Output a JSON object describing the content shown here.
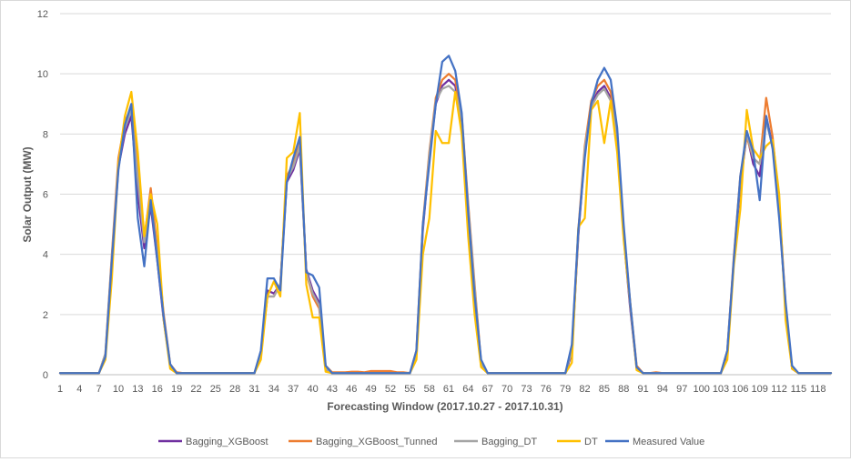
{
  "chart_data": {
    "type": "line",
    "title": "",
    "xlabel": "Forecasting Window (2017.10.27  - 2017.10.31)",
    "ylabel": "Solar Output (MW)",
    "ylim": [
      0,
      12
    ],
    "yticks": [
      0,
      2,
      4,
      6,
      8,
      10,
      12
    ],
    "xlim": [
      1,
      120
    ],
    "xtick_labels": [
      "1",
      "4",
      "7",
      "10",
      "13",
      "16",
      "19",
      "22",
      "25",
      "28",
      "31",
      "34",
      "37",
      "40",
      "43",
      "46",
      "49",
      "52",
      "55",
      "58",
      "61",
      "64",
      "67",
      "70",
      "73",
      "76",
      "79",
      "82",
      "85",
      "88",
      "91",
      "94",
      "97",
      "100",
      "103",
      "106",
      "109",
      "112",
      "115",
      "118"
    ],
    "grid": "horizontal",
    "legend_position": "bottom",
    "x": [
      1,
      2,
      3,
      4,
      5,
      6,
      7,
      8,
      9,
      10,
      11,
      12,
      13,
      14,
      15,
      16,
      17,
      18,
      19,
      20,
      21,
      22,
      23,
      24,
      25,
      26,
      27,
      28,
      29,
      30,
      31,
      32,
      33,
      34,
      35,
      36,
      37,
      38,
      39,
      40,
      41,
      42,
      43,
      44,
      45,
      46,
      47,
      48,
      49,
      50,
      51,
      52,
      53,
      54,
      55,
      56,
      57,
      58,
      59,
      60,
      61,
      62,
      63,
      64,
      65,
      66,
      67,
      68,
      69,
      70,
      71,
      72,
      73,
      74,
      75,
      76,
      77,
      78,
      79,
      80,
      81,
      82,
      83,
      84,
      85,
      86,
      87,
      88,
      89,
      90,
      91,
      92,
      93,
      94,
      95,
      96,
      97,
      98,
      99,
      100,
      101,
      102,
      103,
      104,
      105,
      106,
      107,
      108,
      109,
      110,
      111,
      112,
      113,
      114,
      115,
      116,
      117,
      118,
      119,
      120
    ],
    "series": [
      {
        "name": "Bagging_XGBoost",
        "color": "#7030a0",
        "values": [
          0.05,
          0.05,
          0.05,
          0.05,
          0.05,
          0.05,
          0.05,
          0.6,
          3.8,
          6.9,
          8.0,
          8.6,
          6.0,
          4.2,
          5.6,
          3.8,
          1.8,
          0.3,
          0.05,
          0.05,
          0.05,
          0.05,
          0.05,
          0.05,
          0.05,
          0.05,
          0.05,
          0.05,
          0.05,
          0.05,
          0.05,
          0.6,
          2.8,
          2.7,
          3.0,
          6.4,
          6.8,
          7.5,
          3.5,
          2.8,
          2.4,
          0.15,
          0.05,
          0.05,
          0.05,
          0.05,
          0.05,
          0.05,
          0.05,
          0.05,
          0.05,
          0.05,
          0.05,
          0.05,
          0.05,
          0.7,
          4.8,
          7.2,
          9.0,
          9.6,
          9.8,
          9.6,
          8.4,
          5.5,
          2.8,
          0.3,
          0.05,
          0.05,
          0.05,
          0.05,
          0.05,
          0.05,
          0.05,
          0.05,
          0.05,
          0.05,
          0.05,
          0.05,
          0.05,
          0.7,
          4.6,
          7.4,
          9.0,
          9.4,
          9.6,
          9.2,
          7.8,
          4.6,
          2.2,
          0.2,
          0.05,
          0.05,
          0.05,
          0.05,
          0.05,
          0.05,
          0.05,
          0.05,
          0.05,
          0.05,
          0.05,
          0.05,
          0.05,
          0.7,
          3.7,
          6.3,
          8.0,
          7.0,
          6.6,
          8.6,
          7.6,
          5.5,
          2.2,
          0.2,
          0.05,
          0.05,
          0.05,
          0.05,
          0.05,
          0.05
        ]
      },
      {
        "name": "Bagging_XGBoost_Tunned",
        "color": "#ed7d31",
        "values": [
          0.05,
          0.05,
          0.05,
          0.05,
          0.05,
          0.05,
          0.05,
          0.7,
          4.0,
          7.2,
          8.4,
          8.9,
          7.0,
          4.5,
          6.2,
          4.2,
          2.0,
          0.35,
          0.08,
          0.05,
          0.05,
          0.05,
          0.05,
          0.05,
          0.05,
          0.05,
          0.05,
          0.05,
          0.05,
          0.05,
          0.05,
          0.7,
          2.6,
          2.6,
          3.0,
          6.6,
          7.0,
          7.9,
          3.4,
          2.6,
          2.2,
          0.3,
          0.08,
          0.08,
          0.08,
          0.1,
          0.1,
          0.08,
          0.12,
          0.12,
          0.12,
          0.12,
          0.08,
          0.08,
          0.05,
          0.8,
          5.0,
          7.4,
          9.2,
          9.8,
          10.0,
          9.8,
          8.6,
          5.7,
          3.0,
          0.4,
          0.05,
          0.05,
          0.05,
          0.05,
          0.05,
          0.05,
          0.05,
          0.05,
          0.05,
          0.05,
          0.05,
          0.05,
          0.05,
          0.8,
          4.8,
          7.6,
          9.1,
          9.6,
          9.8,
          9.4,
          8.0,
          4.8,
          2.4,
          0.3,
          0.05,
          0.05,
          0.08,
          0.05,
          0.05,
          0.05,
          0.05,
          0.05,
          0.05,
          0.05,
          0.05,
          0.05,
          0.05,
          0.8,
          3.9,
          6.6,
          7.9,
          7.2,
          7.0,
          9.2,
          7.9,
          5.7,
          2.3,
          0.2,
          0.05,
          0.05,
          0.05,
          0.05,
          0.05,
          0.05
        ]
      },
      {
        "name": "Bagging_DT",
        "color": "#a5a5a5",
        "values": [
          0.05,
          0.05,
          0.05,
          0.05,
          0.05,
          0.05,
          0.05,
          0.7,
          3.9,
          7.0,
          8.2,
          8.8,
          6.5,
          4.4,
          5.8,
          4.0,
          1.9,
          0.3,
          0.05,
          0.05,
          0.05,
          0.05,
          0.05,
          0.05,
          0.05,
          0.05,
          0.05,
          0.05,
          0.05,
          0.05,
          0.05,
          0.7,
          2.6,
          2.6,
          3.0,
          6.5,
          6.9,
          7.6,
          3.4,
          2.7,
          2.3,
          0.2,
          0.05,
          0.05,
          0.05,
          0.05,
          0.05,
          0.05,
          0.05,
          0.05,
          0.05,
          0.05,
          0.05,
          0.05,
          0.05,
          0.7,
          4.9,
          7.3,
          9.1,
          9.5,
          9.6,
          9.4,
          8.5,
          5.6,
          2.9,
          0.35,
          0.05,
          0.05,
          0.05,
          0.05,
          0.05,
          0.05,
          0.05,
          0.05,
          0.05,
          0.05,
          0.05,
          0.05,
          0.05,
          0.8,
          4.7,
          7.5,
          8.9,
          9.3,
          9.5,
          9.1,
          7.9,
          4.7,
          2.3,
          0.25,
          0.05,
          0.05,
          0.05,
          0.05,
          0.05,
          0.05,
          0.05,
          0.05,
          0.05,
          0.05,
          0.05,
          0.05,
          0.05,
          0.8,
          3.8,
          6.5,
          8.0,
          7.2,
          7.0,
          8.4,
          7.6,
          5.6,
          2.2,
          0.2,
          0.05,
          0.05,
          0.05,
          0.05,
          0.05,
          0.05
        ]
      },
      {
        "name": "DT",
        "color": "#ffc000",
        "values": [
          0.05,
          0.05,
          0.05,
          0.05,
          0.05,
          0.05,
          0.05,
          0.5,
          3.2,
          7.0,
          8.6,
          9.4,
          7.4,
          4.6,
          6.0,
          5.0,
          1.8,
          0.2,
          0.05,
          0.05,
          0.05,
          0.05,
          0.05,
          0.05,
          0.05,
          0.05,
          0.05,
          0.05,
          0.05,
          0.05,
          0.05,
          0.5,
          2.6,
          3.1,
          2.6,
          7.2,
          7.4,
          8.7,
          3.0,
          1.9,
          1.9,
          0.1,
          0.05,
          0.05,
          0.05,
          0.05,
          0.05,
          0.05,
          0.05,
          0.05,
          0.05,
          0.05,
          0.05,
          0.05,
          0.05,
          0.5,
          4.0,
          5.2,
          8.1,
          7.7,
          7.7,
          9.4,
          8.0,
          4.6,
          2.0,
          0.25,
          0.05,
          0.05,
          0.05,
          0.05,
          0.05,
          0.05,
          0.05,
          0.05,
          0.05,
          0.05,
          0.05,
          0.05,
          0.05,
          0.4,
          4.9,
          5.2,
          8.8,
          9.1,
          7.7,
          9.1,
          7.4,
          4.5,
          2.4,
          0.15,
          0.05,
          0.05,
          0.05,
          0.05,
          0.05,
          0.05,
          0.05,
          0.05,
          0.05,
          0.05,
          0.05,
          0.05,
          0.05,
          0.5,
          3.6,
          5.5,
          8.8,
          7.5,
          7.2,
          7.6,
          7.8,
          6.0,
          1.8,
          0.2,
          0.05,
          0.05,
          0.05,
          0.05,
          0.05,
          0.05
        ]
      },
      {
        "name": "Measured Value",
        "color": "#4472c4",
        "values": [
          0.05,
          0.05,
          0.05,
          0.05,
          0.05,
          0.05,
          0.05,
          0.6,
          3.8,
          6.8,
          8.3,
          9.0,
          5.2,
          3.6,
          5.8,
          3.8,
          1.9,
          0.35,
          0.05,
          0.05,
          0.05,
          0.05,
          0.05,
          0.05,
          0.05,
          0.05,
          0.05,
          0.05,
          0.05,
          0.05,
          0.05,
          0.8,
          3.2,
          3.2,
          2.8,
          6.4,
          7.2,
          7.9,
          3.4,
          3.3,
          2.9,
          0.3,
          0.05,
          0.05,
          0.05,
          0.05,
          0.05,
          0.05,
          0.05,
          0.05,
          0.05,
          0.05,
          0.05,
          0.05,
          0.05,
          0.8,
          5.0,
          7.0,
          9.0,
          10.4,
          10.6,
          10.1,
          8.7,
          5.4,
          2.6,
          0.5,
          0.05,
          0.05,
          0.05,
          0.05,
          0.05,
          0.05,
          0.05,
          0.05,
          0.05,
          0.05,
          0.05,
          0.05,
          0.05,
          1.0,
          4.8,
          7.2,
          9.0,
          9.8,
          10.2,
          9.8,
          8.2,
          5.0,
          2.4,
          0.25,
          0.05,
          0.05,
          0.05,
          0.05,
          0.05,
          0.05,
          0.05,
          0.05,
          0.05,
          0.05,
          0.05,
          0.05,
          0.05,
          0.8,
          3.8,
          6.6,
          8.1,
          7.4,
          5.8,
          8.6,
          7.5,
          5.2,
          2.4,
          0.3,
          0.05,
          0.05,
          0.05,
          0.05,
          0.05,
          0.05
        ]
      }
    ]
  }
}
